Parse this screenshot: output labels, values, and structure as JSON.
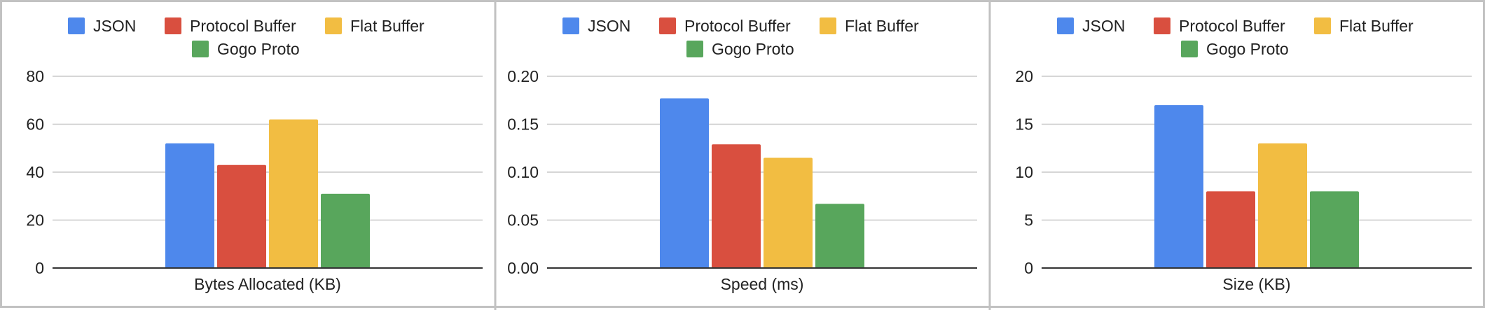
{
  "series_colors": [
    "#4e88ec",
    "#d94f3f",
    "#f2bd42",
    "#58a65c"
  ],
  "chart_data": [
    {
      "type": "bar",
      "categories": [
        "Bytes Allocated (KB)"
      ],
      "xlabel": "Bytes Allocated (KB)",
      "ylim": [
        0,
        80
      ],
      "yticks": [
        "0",
        "20",
        "40",
        "60",
        "80"
      ],
      "grid": true,
      "legend_position": "top",
      "series": [
        {
          "name": "JSON",
          "values": [
            52
          ]
        },
        {
          "name": "Protocol Buffer",
          "values": [
            43
          ]
        },
        {
          "name": "Flat Buffer",
          "values": [
            62
          ]
        },
        {
          "name": "Gogo Proto",
          "values": [
            31
          ]
        }
      ]
    },
    {
      "type": "bar",
      "categories": [
        "Speed (ms)"
      ],
      "xlabel": "Speed (ms)",
      "ylim": [
        0,
        0.2
      ],
      "yticks": [
        "0.00",
        "0.05",
        "0.10",
        "0.15",
        "0.20"
      ],
      "grid": true,
      "legend_position": "top",
      "series": [
        {
          "name": "JSON",
          "values": [
            0.177
          ]
        },
        {
          "name": "Protocol Buffer",
          "values": [
            0.129
          ]
        },
        {
          "name": "Flat Buffer",
          "values": [
            0.115
          ]
        },
        {
          "name": "Gogo Proto",
          "values": [
            0.067
          ]
        }
      ]
    },
    {
      "type": "bar",
      "categories": [
        "Size (KB)"
      ],
      "xlabel": "Size (KB)",
      "ylim": [
        0,
        20
      ],
      "yticks": [
        "0",
        "5",
        "10",
        "15",
        "20"
      ],
      "grid": true,
      "legend_position": "top",
      "series": [
        {
          "name": "JSON",
          "values": [
            17
          ]
        },
        {
          "name": "Protocol Buffer",
          "values": [
            8
          ]
        },
        {
          "name": "Flat Buffer",
          "values": [
            13
          ]
        },
        {
          "name": "Gogo Proto",
          "values": [
            8
          ]
        }
      ]
    }
  ]
}
